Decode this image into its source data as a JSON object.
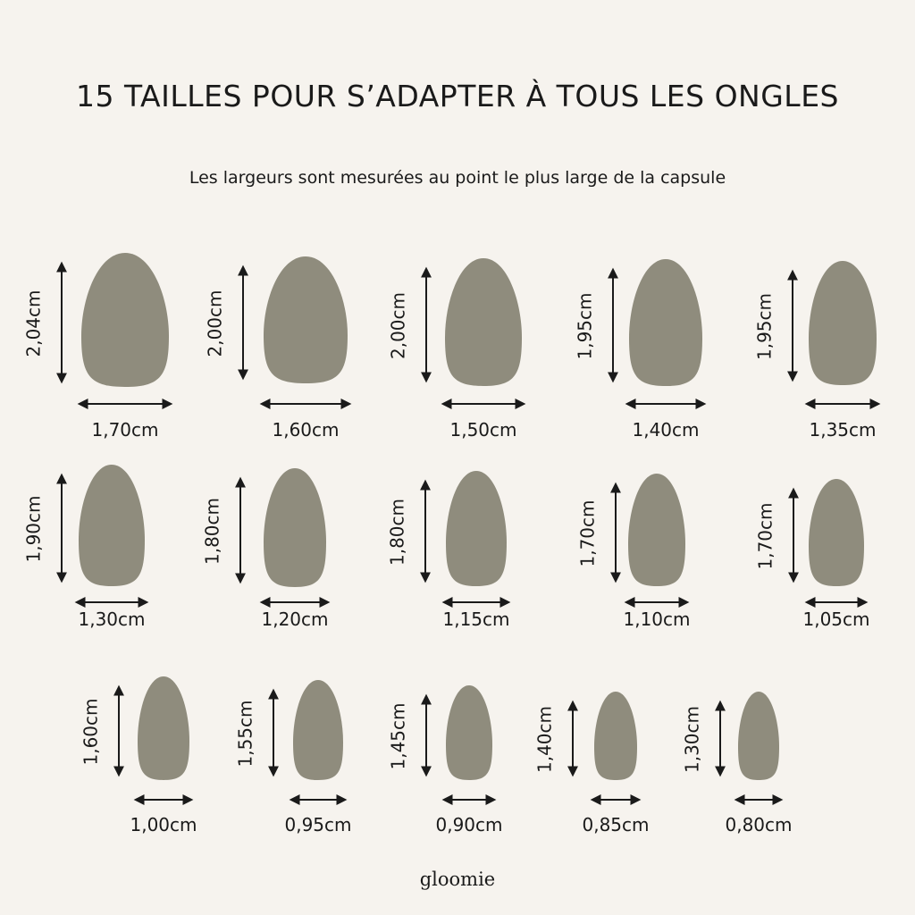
{
  "title": "15 TAILLES POUR S’ADAPTER À TOUS LES ONGLES",
  "subtitle": "Les largeurs sont mesurées au point le plus large de la capsule",
  "brand": "gloomie",
  "colors": {
    "background": "#f6f3ee",
    "nail": "#8f8c7d",
    "text": "#1a1a1a"
  },
  "nails": [
    {
      "height": "2,04cm",
      "width": "1,70cm"
    },
    {
      "height": "2,00cm",
      "width": "1,60cm"
    },
    {
      "height": "2,00cm",
      "width": "1,50cm"
    },
    {
      "height": "1,95cm",
      "width": "1,40cm"
    },
    {
      "height": "1,95cm",
      "width": "1,35cm"
    },
    {
      "height": "1,90cm",
      "width": "1,30cm"
    },
    {
      "height": "1,80cm",
      "width": "1,20cm"
    },
    {
      "height": "1,80cm",
      "width": "1,15cm"
    },
    {
      "height": "1,70cm",
      "width": "1,10cm"
    },
    {
      "height": "1,70cm",
      "width": "1,05cm"
    },
    {
      "height": "1,60cm",
      "width": "1,00cm"
    },
    {
      "height": "1,55cm",
      "width": "0,95cm"
    },
    {
      "height": "1,45cm",
      "width": "0,90cm"
    },
    {
      "height": "1,40cm",
      "width": "0,85cm"
    },
    {
      "height": "1,30cm",
      "width": "0,80cm"
    }
  ]
}
